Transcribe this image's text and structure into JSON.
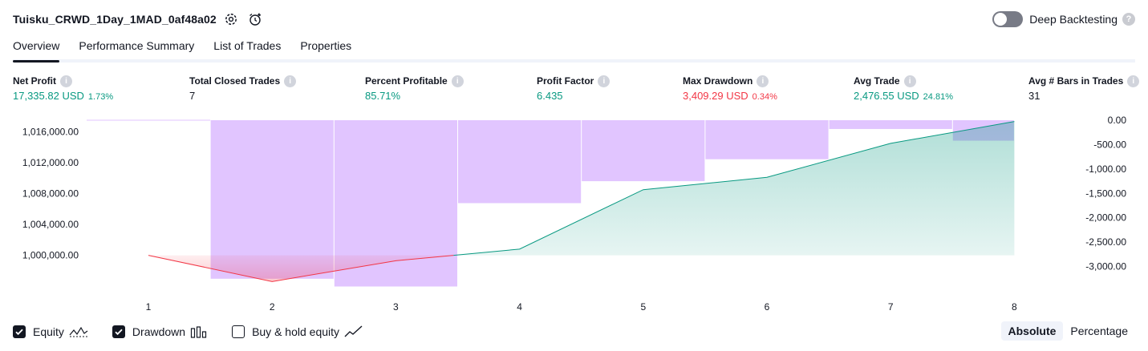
{
  "header": {
    "title": "Tuisku_CRWD_1Day_1MAD_0af48a02",
    "settings_icon": "gear-icon",
    "alert_icon": "add-alert-icon",
    "deep_backtesting_label": "Deep Backtesting",
    "deep_backtesting_enabled": false,
    "help_mark": "?"
  },
  "tabs": [
    {
      "label": "Overview",
      "active": true
    },
    {
      "label": "Performance Summary",
      "active": false
    },
    {
      "label": "List of Trades",
      "active": false
    },
    {
      "label": "Properties",
      "active": false
    }
  ],
  "metrics": {
    "info_mark": "i",
    "net_profit": {
      "label": "Net Profit",
      "value": "17,335.82 USD",
      "sub": "1.73%"
    },
    "total_closed_trades": {
      "label": "Total Closed Trades",
      "value": "7"
    },
    "percent_profitable": {
      "label": "Percent Profitable",
      "value": "85.71%"
    },
    "profit_factor": {
      "label": "Profit Factor",
      "value": "6.435"
    },
    "max_drawdown": {
      "label": "Max Drawdown",
      "value": "3,409.29 USD",
      "sub": "0.34%"
    },
    "avg_trade": {
      "label": "Avg Trade",
      "value": "2,476.55 USD",
      "sub": "24.81%"
    },
    "avg_bars": {
      "label": "Avg # Bars in Trades",
      "value": "31"
    }
  },
  "chart_data": {
    "type": "line",
    "x": [
      1,
      2,
      3,
      4,
      5,
      6,
      7,
      8
    ],
    "x_tick_labels": [
      "1",
      "2",
      "3",
      "4",
      "5",
      "6",
      "7",
      "8"
    ],
    "series": [
      {
        "name": "Equity",
        "axis": "left",
        "color_up": "#089981",
        "color_down": "#f23645",
        "values": [
          1000000,
          996600,
          999300,
          1000800,
          1008500,
          1010100,
          1014500,
          1017335.82
        ]
      },
      {
        "name": "Drawdown",
        "axis": "right",
        "type": "bar",
        "color": "#e1c5ff",
        "bar_positions": [
          1.5,
          2.5,
          3.5,
          4.5,
          5.5,
          6.5,
          7.5,
          8.0
        ],
        "values": [
          0,
          -3250,
          -3409.29,
          -1700,
          -1250,
          -800,
          -180,
          -420
        ]
      }
    ],
    "left_axis": {
      "ylim": [
        995700,
        1017500
      ],
      "ticks": [
        1000000,
        1004000,
        1008000,
        1012000,
        1016000
      ],
      "tick_labels": [
        "1,000,000.00",
        "1,004,000.00",
        "1,008,000.00",
        "1,012,000.00",
        "1,016,000.00"
      ]
    },
    "right_axis": {
      "ylim": [
        -3450,
        0
      ],
      "ticks": [
        0,
        -500,
        -1000,
        -1500,
        -2000,
        -2500,
        -3000
      ],
      "tick_labels": [
        "0.00",
        "-500.00",
        "-1,000.00",
        "-1,500.00",
        "-2,000.00",
        "-2,500.00",
        "-3,000.00"
      ]
    },
    "grid": false,
    "legend": "bottom-left"
  },
  "legend": {
    "equity": {
      "label": "Equity",
      "checked": true,
      "icon": "equity-line-icon"
    },
    "drawdown": {
      "label": "Drawdown",
      "checked": true,
      "icon": "drawdown-bars-icon"
    },
    "buy_hold": {
      "label": "Buy & hold equity",
      "checked": false,
      "icon": "buy-hold-line-icon"
    }
  },
  "modes": [
    {
      "label": "Absolute",
      "active": true
    },
    {
      "label": "Percentage",
      "active": false
    }
  ]
}
